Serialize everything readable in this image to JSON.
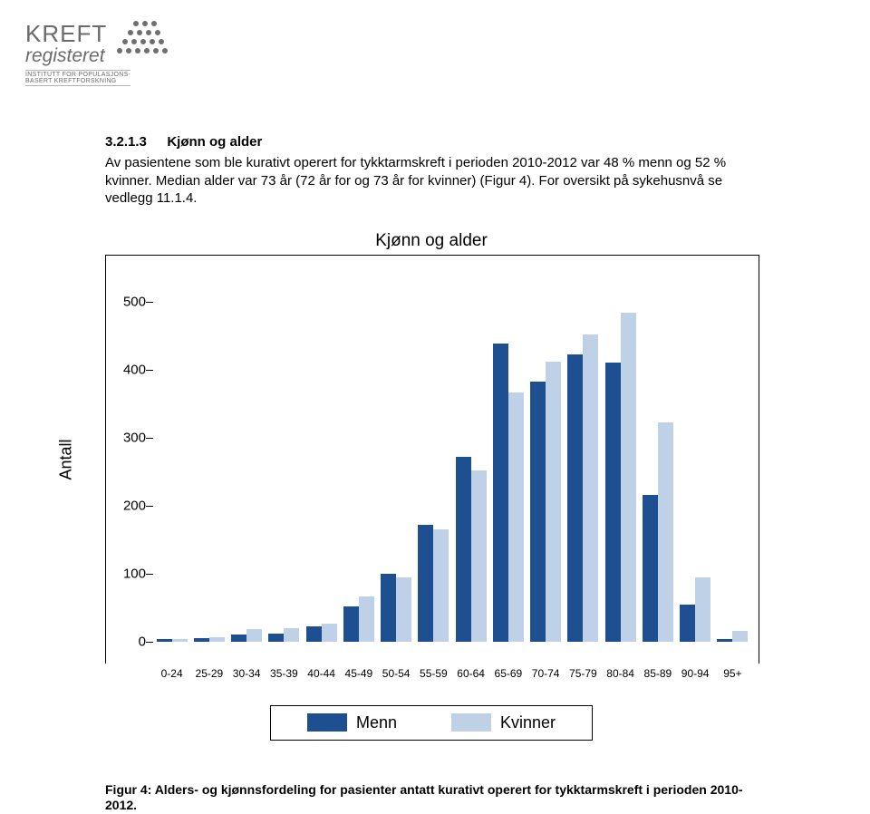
{
  "logo": {
    "line1": "KREFT",
    "line2": "registeret",
    "tagline1": "INSTITUTT FOR POPULASJONS-",
    "tagline2": "BASERT KREFTFORSKNING",
    "dot_color": "#6f6f6f",
    "text_color": "#6b6b6b"
  },
  "section": {
    "num": "3.2.1.3",
    "title": "Kjønn og alder",
    "body": "Av pasientene som ble kurativt operert for tykktarmskreft i perioden 2010-2012 var 48 % menn og 52 % kvinner. Median alder var 73 år (72 år for og 73 år for kvinner) (Figur 4). For oversikt på sykehusnvå se vedlegg 11.1.4."
  },
  "chart": {
    "type": "bar",
    "title": "Kjønn og alder",
    "ylabel": "Antall",
    "ylim": [
      0,
      550
    ],
    "ytick_step": 100,
    "yticks": [
      0,
      100,
      200,
      300,
      400,
      500
    ],
    "colors": {
      "menn": "#1e4f91",
      "kvinner": "#bed1e6"
    },
    "background_color": "#ffffff",
    "categories": [
      "0-24",
      "25-29",
      "30-34",
      "35-39",
      "40-44",
      "45-49",
      "50-54",
      "55-59",
      "60-64",
      "65-69",
      "70-74",
      "75-79",
      "80-84",
      "85-89",
      "90-94",
      "95+"
    ],
    "menn": [
      3,
      5,
      10,
      12,
      22,
      52,
      100,
      172,
      272,
      438,
      382,
      422,
      410,
      216,
      54,
      4
    ],
    "kvinner": [
      4,
      6,
      18,
      20,
      26,
      66,
      94,
      165,
      252,
      366,
      412,
      452,
      484,
      322,
      94,
      16
    ],
    "bar_group_width": 0.82,
    "label_fontsize": 12,
    "title_fontsize": 19
  },
  "legend": {
    "menn": "Menn",
    "kvinner": "Kvinner"
  },
  "caption": {
    "lead": "Figur 4: Alders- og kjønnsfordeling for pasienter antatt kurativt operert for tykktarmskreft i perioden 2010-2012."
  }
}
